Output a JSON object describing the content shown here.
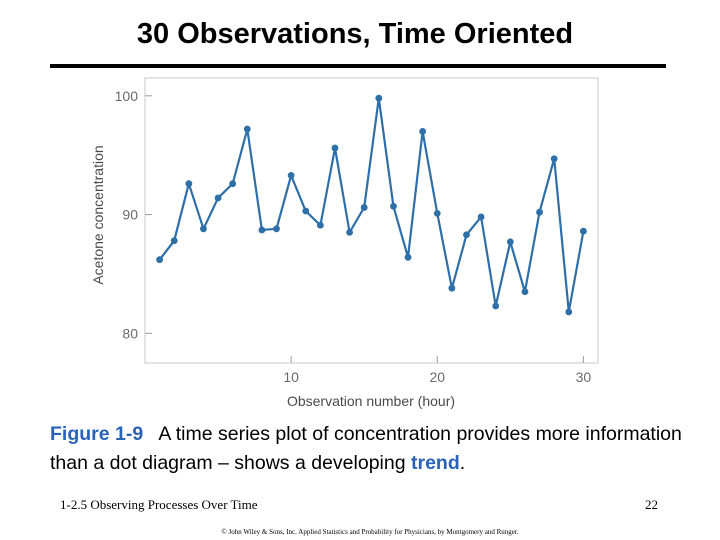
{
  "slide": {
    "title": "30 Observations, Time  Oriented",
    "caption_fig": "Figure 1-9",
    "caption_text": "A time series plot of concentration provides more information than a dot diagram – shows a developing",
    "caption_trend": "trend",
    "caption_end": ".",
    "footer_left": "1-2.5 Observing Processes Over Time",
    "footer_page": "22",
    "copyright": "© John Wiley & Sons, Inc.  Applied Statistics and Probability for Physicians, by Montgomery and Runger."
  },
  "chart_data": {
    "type": "line",
    "title": "",
    "xlabel": "Observation number (hour)",
    "ylabel": "Acetone concentration",
    "xlim": [
      0,
      31
    ],
    "ylim": [
      77.5,
      101.5
    ],
    "xticks": [
      10,
      20,
      30
    ],
    "yticks": [
      80,
      90,
      100
    ],
    "grid": false,
    "line_color": "#2e6fa8",
    "x": [
      1,
      2,
      3,
      4,
      5,
      6,
      7,
      8,
      9,
      10,
      11,
      12,
      13,
      14,
      15,
      16,
      17,
      18,
      19,
      20,
      21,
      22,
      23,
      24,
      25,
      26,
      27,
      28,
      29,
      30
    ],
    "y": [
      86.2,
      87.8,
      92.6,
      88.8,
      91.4,
      92.6,
      97.2,
      88.7,
      88.8,
      93.3,
      90.3,
      89.1,
      95.6,
      88.5,
      90.6,
      99.8,
      90.7,
      86.4,
      97.0,
      90.1,
      83.8,
      88.3,
      89.8,
      82.3,
      87.7,
      83.5,
      90.2,
      94.7,
      81.8,
      88.6
    ]
  }
}
